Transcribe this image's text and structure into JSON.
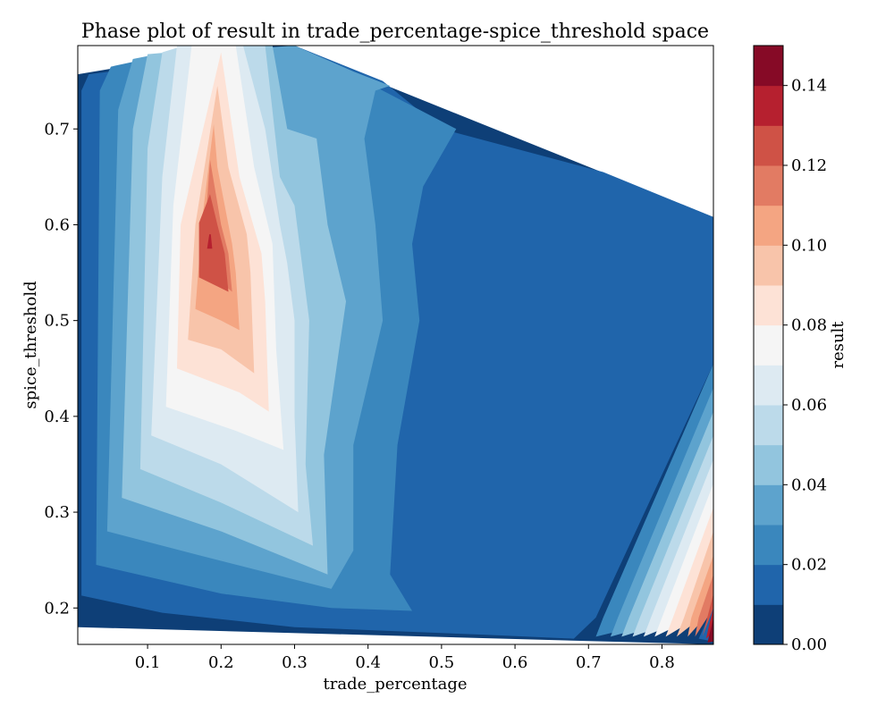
{
  "chart_data": {
    "type": "contourf",
    "title": "Phase plot of result in trade_percentage-spice_threshold space",
    "xlabel": "trade_percentage",
    "ylabel": "spice_threshold",
    "xlim": [
      0.005,
      0.87
    ],
    "ylim": [
      0.162,
      0.787
    ],
    "xticks": [
      0.1,
      0.2,
      0.3,
      0.4,
      0.5,
      0.6,
      0.7,
      0.8
    ],
    "yticks": [
      0.2,
      0.3,
      0.4,
      0.5,
      0.6,
      0.7
    ],
    "colorbar": {
      "label": "result",
      "range": [
        0.0,
        0.15
      ],
      "ticks": [
        0.0,
        0.02,
        0.04,
        0.06,
        0.08,
        0.1,
        0.12,
        0.14
      ],
      "level_step": 0.01,
      "colormap": "RdBu_r",
      "colors": [
        "#0e3f77",
        "#2065ab",
        "#3a87bd",
        "#5da3cd",
        "#92c5de",
        "#bcdaea",
        "#ddeaf2",
        "#f5f5f5",
        "#fde2d6",
        "#f8c4aa",
        "#f4a582",
        "#e27b63",
        "#cf5246",
        "#b6202f",
        "#860a26"
      ]
    },
    "valid_region": [
      {
        "x": 0.005,
        "y": 0.757
      },
      {
        "x": 0.237,
        "y": 0.787
      },
      {
        "x": 0.29,
        "y": 0.787
      },
      {
        "x": 0.87,
        "y": 0.608
      },
      {
        "x": 0.87,
        "y": 0.162
      },
      {
        "x": 0.005,
        "y": 0.18
      }
    ],
    "contours": [
      {
        "level": 0.01,
        "points": [
          [
            0.02,
            0.757
          ],
          [
            0.01,
            0.74
          ],
          [
            0.01,
            0.213
          ],
          [
            0.12,
            0.195
          ],
          [
            0.3,
            0.18
          ],
          [
            0.56,
            0.172
          ],
          [
            0.68,
            0.168
          ],
          [
            0.71,
            0.19
          ],
          [
            0.87,
            0.455
          ],
          [
            0.87,
            0.608
          ],
          [
            0.72,
            0.655
          ],
          [
            0.5,
            0.7
          ],
          [
            0.42,
            0.75
          ],
          [
            0.3,
            0.787
          ],
          [
            0.05,
            0.76
          ]
        ]
      },
      {
        "level": 0.02,
        "points": [
          [
            0.05,
            0.765
          ],
          [
            0.035,
            0.74
          ],
          [
            0.03,
            0.245
          ],
          [
            0.2,
            0.215
          ],
          [
            0.35,
            0.2
          ],
          [
            0.46,
            0.197
          ],
          [
            0.43,
            0.235
          ],
          [
            0.44,
            0.37
          ],
          [
            0.47,
            0.5
          ],
          [
            0.46,
            0.58
          ],
          [
            0.475,
            0.64
          ],
          [
            0.52,
            0.7
          ],
          [
            0.42,
            0.74
          ],
          [
            0.3,
            0.787
          ],
          [
            0.08,
            0.77
          ]
        ]
      },
      {
        "level": 0.03,
        "points": [
          [
            0.08,
            0.773
          ],
          [
            0.06,
            0.72
          ],
          [
            0.045,
            0.28
          ],
          [
            0.17,
            0.255
          ],
          [
            0.35,
            0.22
          ],
          [
            0.38,
            0.26
          ],
          [
            0.38,
            0.37
          ],
          [
            0.42,
            0.5
          ],
          [
            0.41,
            0.6
          ],
          [
            0.395,
            0.69
          ],
          [
            0.41,
            0.74
          ],
          [
            0.43,
            0.745
          ],
          [
            0.38,
            0.76
          ],
          [
            0.3,
            0.787
          ],
          [
            0.1,
            0.776
          ]
        ]
      },
      {
        "level": 0.04,
        "points": [
          [
            0.1,
            0.778
          ],
          [
            0.08,
            0.7
          ],
          [
            0.065,
            0.315
          ],
          [
            0.2,
            0.28
          ],
          [
            0.345,
            0.235
          ],
          [
            0.34,
            0.36
          ],
          [
            0.37,
            0.52
          ],
          [
            0.345,
            0.6
          ],
          [
            0.33,
            0.69
          ],
          [
            0.29,
            0.7
          ],
          [
            0.27,
            0.787
          ],
          [
            0.13,
            0.78
          ]
        ]
      },
      {
        "level": 0.05,
        "points": [
          [
            0.12,
            0.78
          ],
          [
            0.1,
            0.68
          ],
          [
            0.09,
            0.345
          ],
          [
            0.2,
            0.31
          ],
          [
            0.325,
            0.265
          ],
          [
            0.315,
            0.35
          ],
          [
            0.32,
            0.5
          ],
          [
            0.31,
            0.56
          ],
          [
            0.3,
            0.62
          ],
          [
            0.28,
            0.65
          ],
          [
            0.26,
            0.787
          ],
          [
            0.15,
            0.787
          ]
        ]
      },
      {
        "level": 0.06,
        "points": [
          [
            0.14,
            0.787
          ],
          [
            0.12,
            0.65
          ],
          [
            0.105,
            0.38
          ],
          [
            0.2,
            0.35
          ],
          [
            0.305,
            0.3
          ],
          [
            0.3,
            0.4
          ],
          [
            0.3,
            0.5
          ],
          [
            0.29,
            0.56
          ],
          [
            0.28,
            0.6
          ],
          [
            0.26,
            0.7
          ],
          [
            0.23,
            0.787
          ]
        ]
      },
      {
        "level": 0.07,
        "points": [
          [
            0.16,
            0.787
          ],
          [
            0.135,
            0.62
          ],
          [
            0.125,
            0.41
          ],
          [
            0.22,
            0.385
          ],
          [
            0.285,
            0.365
          ],
          [
            0.275,
            0.47
          ],
          [
            0.27,
            0.58
          ],
          [
            0.245,
            0.66
          ],
          [
            0.22,
            0.787
          ]
        ]
      },
      {
        "level": 0.08,
        "points": [
          [
            0.2,
            0.78
          ],
          [
            0.145,
            0.6
          ],
          [
            0.14,
            0.45
          ],
          [
            0.225,
            0.425
          ],
          [
            0.265,
            0.405
          ],
          [
            0.26,
            0.52
          ],
          [
            0.255,
            0.57
          ],
          [
            0.225,
            0.65
          ],
          [
            0.2,
            0.78
          ]
        ]
      },
      {
        "level": 0.09,
        "points": [
          [
            0.195,
            0.745
          ],
          [
            0.165,
            0.6
          ],
          [
            0.155,
            0.48
          ],
          [
            0.2,
            0.47
          ],
          [
            0.245,
            0.445
          ],
          [
            0.24,
            0.55
          ],
          [
            0.235,
            0.59
          ],
          [
            0.21,
            0.66
          ],
          [
            0.195,
            0.745
          ]
        ]
      },
      {
        "level": 0.1,
        "points": [
          [
            0.19,
            0.705
          ],
          [
            0.175,
            0.61
          ],
          [
            0.165,
            0.512
          ],
          [
            0.2,
            0.5
          ],
          [
            0.225,
            0.49
          ],
          [
            0.22,
            0.55
          ],
          [
            0.215,
            0.58
          ],
          [
            0.195,
            0.66
          ],
          [
            0.19,
            0.705
          ]
        ]
      },
      {
        "level": 0.11,
        "points": [
          [
            0.185,
            0.668
          ],
          [
            0.18,
            0.615
          ],
          [
            0.17,
            0.55
          ],
          [
            0.2,
            0.54
          ],
          [
            0.215,
            0.53
          ],
          [
            0.21,
            0.57
          ],
          [
            0.2,
            0.6
          ],
          [
            0.185,
            0.668
          ]
        ]
      },
      {
        "level": 0.12,
        "points": [
          [
            0.185,
            0.632
          ],
          [
            0.17,
            0.602
          ],
          [
            0.17,
            0.545
          ],
          [
            0.21,
            0.53
          ],
          [
            0.205,
            0.57
          ],
          [
            0.195,
            0.6
          ],
          [
            0.185,
            0.632
          ]
        ]
      },
      {
        "level": 0.13,
        "points": [
          [
            0.184,
            0.59
          ],
          [
            0.181,
            0.575
          ],
          [
            0.188,
            0.575
          ],
          [
            0.186,
            0.59
          ]
        ]
      },
      {
        "level": 0.01,
        "points": [
          [
            0.87,
            0.2
          ],
          [
            0.86,
            0.185
          ],
          [
            0.85,
            0.168
          ],
          [
            0.87,
            0.165
          ]
        ]
      }
    ],
    "corner_bands": [
      {
        "level": 0.02,
        "points": [
          [
            0.87,
            0.455
          ],
          [
            0.87,
            0.2
          ],
          [
            0.71,
            0.17
          ],
          [
            0.72,
            0.19
          ]
        ]
      },
      {
        "level": 0.03,
        "points": [
          [
            0.87,
            0.43
          ],
          [
            0.87,
            0.2
          ],
          [
            0.73,
            0.17
          ],
          [
            0.74,
            0.19
          ]
        ]
      },
      {
        "level": 0.04,
        "points": [
          [
            0.87,
            0.405
          ],
          [
            0.87,
            0.2
          ],
          [
            0.745,
            0.17
          ],
          [
            0.755,
            0.19
          ]
        ]
      },
      {
        "level": 0.05,
        "points": [
          [
            0.87,
            0.38
          ],
          [
            0.87,
            0.2
          ],
          [
            0.76,
            0.17
          ],
          [
            0.77,
            0.19
          ]
        ]
      },
      {
        "level": 0.06,
        "points": [
          [
            0.87,
            0.355
          ],
          [
            0.87,
            0.2
          ],
          [
            0.775,
            0.17
          ],
          [
            0.785,
            0.19
          ]
        ]
      },
      {
        "level": 0.07,
        "points": [
          [
            0.87,
            0.33
          ],
          [
            0.87,
            0.2
          ],
          [
            0.79,
            0.17
          ],
          [
            0.8,
            0.19
          ]
        ]
      },
      {
        "level": 0.08,
        "points": [
          [
            0.87,
            0.305
          ],
          [
            0.87,
            0.2
          ],
          [
            0.805,
            0.17
          ],
          [
            0.815,
            0.19
          ]
        ]
      },
      {
        "level": 0.09,
        "points": [
          [
            0.87,
            0.28
          ],
          [
            0.87,
            0.2
          ],
          [
            0.82,
            0.17
          ],
          [
            0.83,
            0.19
          ]
        ]
      },
      {
        "level": 0.1,
        "points": [
          [
            0.87,
            0.255
          ],
          [
            0.87,
            0.2
          ],
          [
            0.835,
            0.17
          ],
          [
            0.84,
            0.19
          ]
        ]
      },
      {
        "level": 0.11,
        "points": [
          [
            0.87,
            0.235
          ],
          [
            0.87,
            0.2
          ],
          [
            0.845,
            0.17
          ],
          [
            0.85,
            0.19
          ]
        ]
      },
      {
        "level": 0.12,
        "points": [
          [
            0.87,
            0.215
          ],
          [
            0.87,
            0.2
          ],
          [
            0.855,
            0.17
          ],
          [
            0.86,
            0.185
          ]
        ]
      },
      {
        "level": 0.13,
        "points": [
          [
            0.87,
            0.2
          ],
          [
            0.87,
            0.175
          ],
          [
            0.86,
            0.168
          ],
          [
            0.865,
            0.185
          ]
        ]
      },
      {
        "level": 0.14,
        "points": [
          [
            0.87,
            0.19
          ],
          [
            0.87,
            0.165
          ],
          [
            0.862,
            0.164
          ],
          [
            0.867,
            0.18
          ]
        ]
      }
    ]
  }
}
